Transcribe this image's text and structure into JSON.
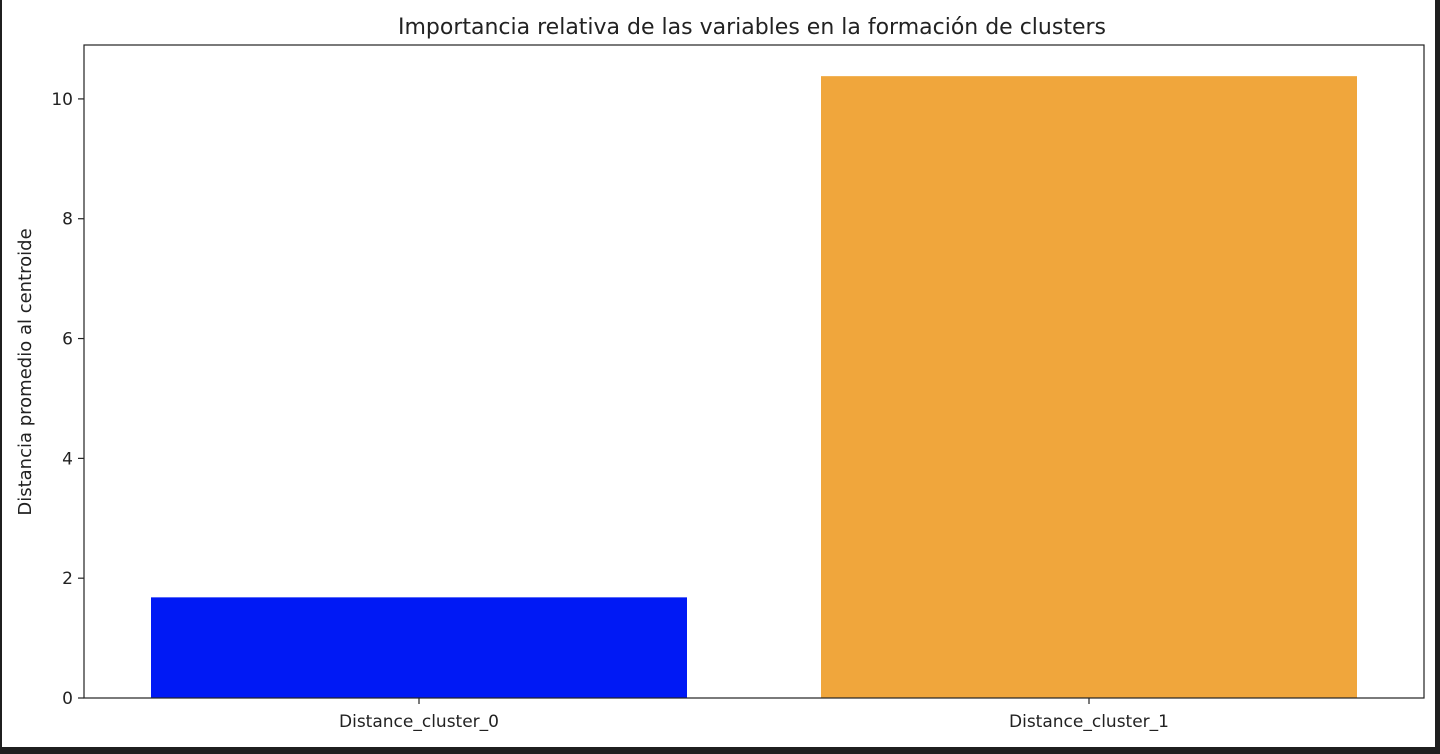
{
  "chart_data": {
    "type": "bar",
    "title": "Importancia relativa de las variables en la formación de clusters",
    "xlabel": "",
    "ylabel": "Distancia promedio al centroide",
    "categories": [
      "Distance_cluster_0",
      "Distance_cluster_1"
    ],
    "values": [
      1.68,
      10.38
    ],
    "colors": [
      "#0019f5",
      "#f0a63c"
    ],
    "ylim": [
      0,
      10.9
    ],
    "yticks": [
      0,
      2,
      4,
      6,
      8,
      10
    ],
    "grid": false,
    "legend": "none"
  }
}
